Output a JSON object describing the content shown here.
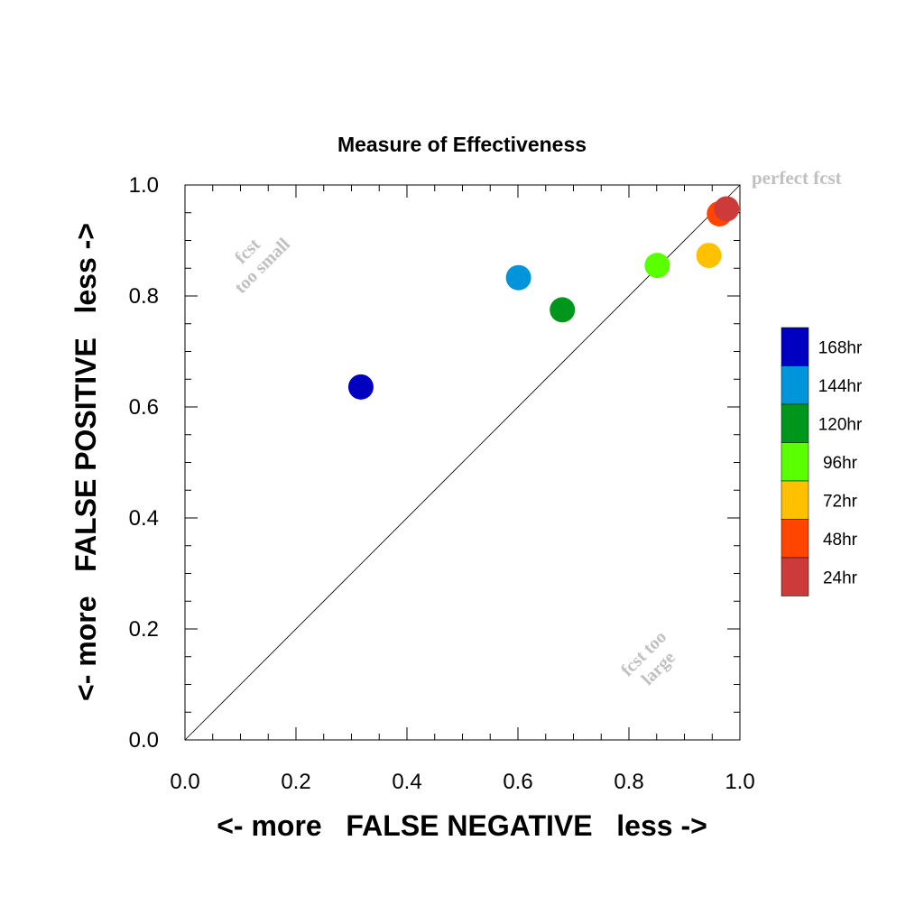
{
  "chart_data": {
    "type": "scatter",
    "title": "Measure of Effectiveness",
    "xlabel": "<- more   FALSE NEGATIVE   less ->",
    "ylabel": "<- more   FALSE POSITIVE   less ->",
    "xlim": [
      0.0,
      1.0
    ],
    "ylim": [
      0.0,
      1.0
    ],
    "x_ticks": [
      "0.0",
      "0.2",
      "0.4",
      "0.6",
      "0.8",
      "1.0"
    ],
    "y_ticks": [
      "0.0",
      "0.2",
      "0.4",
      "0.6",
      "0.8",
      "1.0"
    ],
    "grid": false,
    "legend_position": "right",
    "reference_line": "diagonal y = x",
    "annotations": {
      "perfect": "perfect fcst",
      "too_small_line1": "fcst",
      "too_small_line2": "too small",
      "too_large_line1": "fcst too",
      "too_large_line2": "large"
    },
    "series": [
      {
        "name": "168hr",
        "color": "#0000c0",
        "x": 0.317,
        "y": 0.636
      },
      {
        "name": "144hr",
        "color": "#0095db",
        "x": 0.601,
        "y": 0.833
      },
      {
        "name": "120hr",
        "color": "#00961b",
        "x": 0.68,
        "y": 0.775
      },
      {
        "name": "96hr",
        "color": "#5aff00",
        "x": 0.851,
        "y": 0.855
      },
      {
        "name": "72hr",
        "color": "#ffc000",
        "x": 0.944,
        "y": 0.873
      },
      {
        "name": "48hr",
        "color": "#ff4500",
        "x": 0.963,
        "y": 0.948
      },
      {
        "name": "24hr",
        "color": "#cd3a3a",
        "x": 0.976,
        "y": 0.957
      }
    ]
  }
}
